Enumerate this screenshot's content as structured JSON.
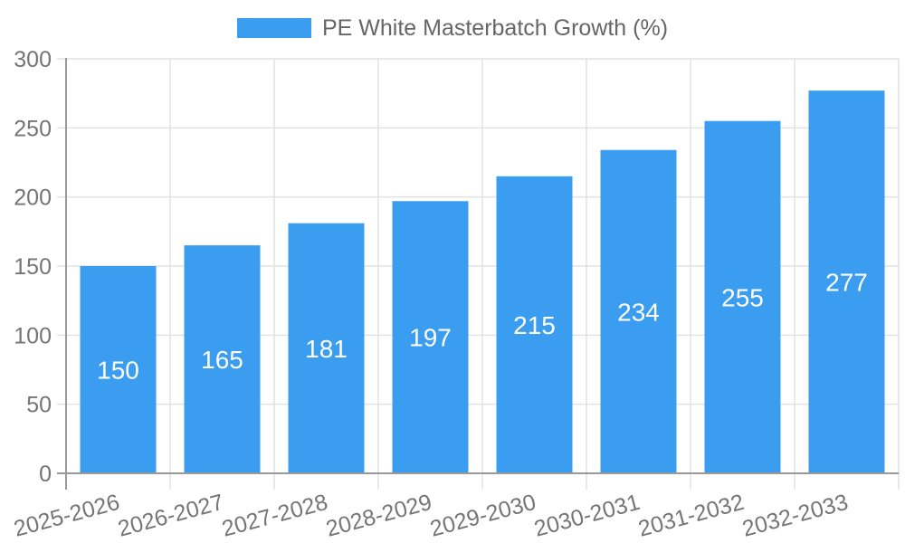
{
  "legend": {
    "label": "PE White Masterbatch Growth (%)"
  },
  "chart_data": {
    "type": "bar",
    "title": "",
    "xlabel": "",
    "ylabel": "",
    "categories": [
      "2025-2026",
      "2026-2027",
      "2027-2028",
      "2028-2029",
      "2029-2030",
      "2030-2031",
      "2031-2032",
      "2032-2033"
    ],
    "series": [
      {
        "name": "PE White Masterbatch Growth (%)",
        "values": [
          150,
          165,
          181,
          197,
          215,
          234,
          255,
          277
        ]
      }
    ],
    "value_labels_position": "inside-center",
    "ylim": [
      0,
      300
    ],
    "yticks": [
      0,
      50,
      100,
      150,
      200,
      250,
      300
    ],
    "x_label_rotation_deg": -15,
    "grid": "both",
    "legend_position": "top-center",
    "colors": {
      "bar": "#3B9DEF",
      "value_label": "#FFFFFF",
      "grid_line": "#E2E2E2",
      "axis_line": "#999999",
      "tick_label": "#757575",
      "legend_text": "#666666",
      "background": "#FFFFFF"
    }
  }
}
